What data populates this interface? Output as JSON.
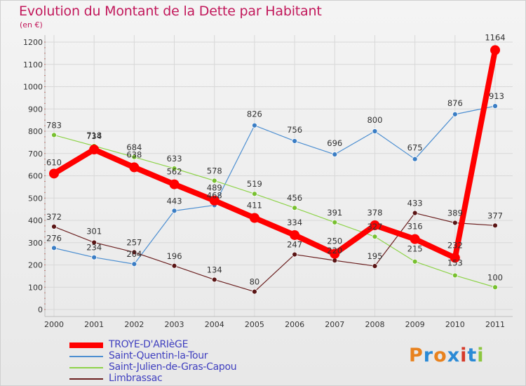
{
  "chart": {
    "title": "Evolution du Montant de la Dette par Habitant",
    "unit": "(en €)",
    "brand": "Proxiti"
  },
  "colors": {
    "title": "#c2185b",
    "grid": "#d8d8d8",
    "legend_text": "#3f3fbf",
    "TROYE-D'ARIèGE": "#ff0000",
    "Saint-Quentin-la-Tour": "#4d8fd1",
    "Saint-Julien-de-Gras-Capou": "#8ed34a",
    "Limbrassac": "#6b2020"
  },
  "chart_data": {
    "type": "line",
    "title": "Evolution du Montant de la Dette par Habitant",
    "ylabel": "(en €)",
    "xlabel": "",
    "x": [
      "2000",
      "2001",
      "2002",
      "2003",
      "2004",
      "2005",
      "2006",
      "2007",
      "2008",
      "2009",
      "2010",
      "2011"
    ],
    "ylim": [
      0,
      1200
    ],
    "yticks": [
      0,
      100,
      200,
      300,
      400,
      500,
      600,
      700,
      800,
      900,
      1000,
      1100,
      1200
    ],
    "grid": true,
    "legend_position": "bottom-left",
    "series": [
      {
        "name": "TROYE-D'ARIèGE",
        "values": [
          610,
          718,
          638,
          562,
          489,
          411,
          334,
          250,
          378,
          316,
          232,
          1164
        ]
      },
      {
        "name": "Saint-Quentin-la-Tour",
        "values": [
          276,
          234,
          204,
          443,
          468,
          826,
          756,
          696,
          800,
          675,
          876,
          913
        ]
      },
      {
        "name": "Saint-Julien-de-Gras-Capou",
        "values": [
          783,
          734,
          684,
          633,
          578,
          519,
          456,
          391,
          327,
          215,
          153,
          100
        ]
      },
      {
        "name": "Limbrassac",
        "values": [
          372,
          301,
          257,
          196,
          134,
          80,
          247,
          220,
          195,
          433,
          389,
          377
        ]
      }
    ]
  }
}
